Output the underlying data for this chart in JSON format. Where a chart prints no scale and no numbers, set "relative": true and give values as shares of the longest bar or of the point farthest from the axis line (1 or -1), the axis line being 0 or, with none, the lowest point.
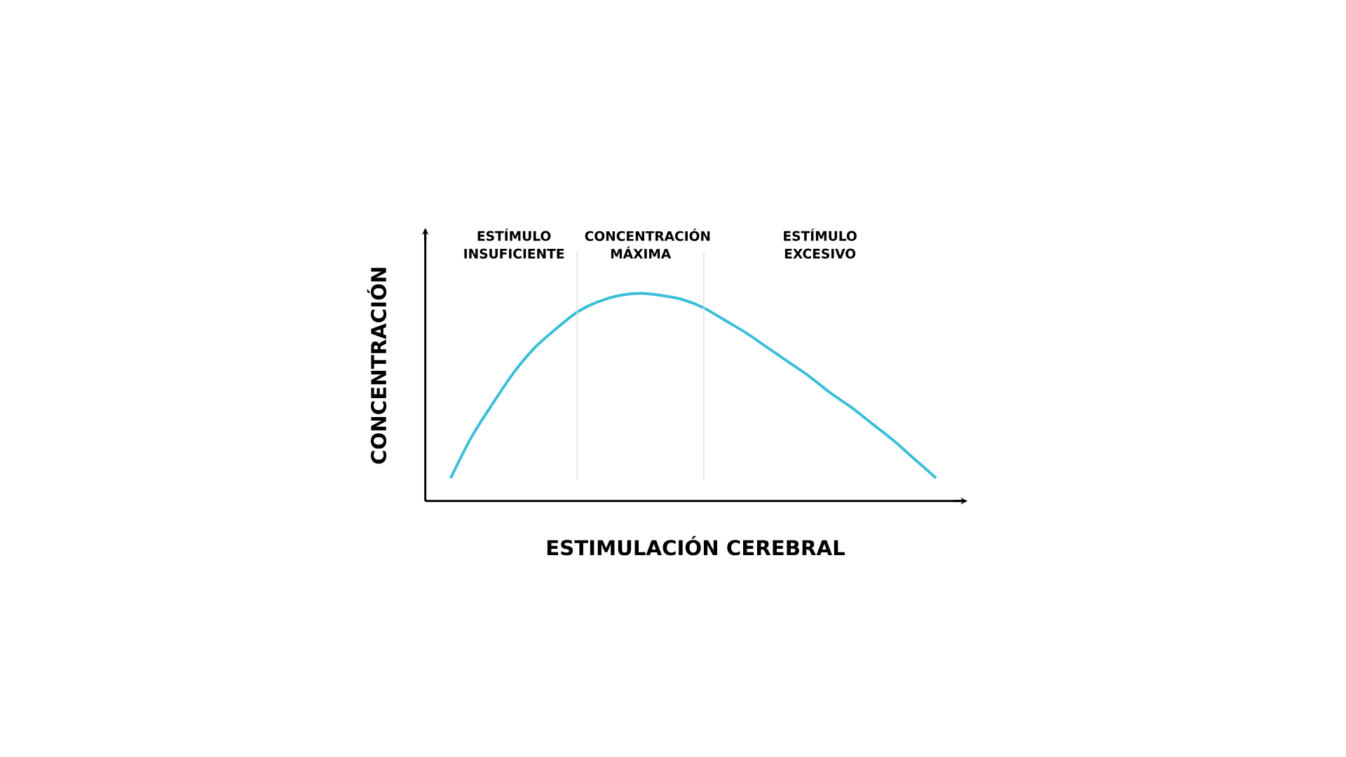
{
  "chart_data": {
    "type": "line",
    "relative": true,
    "xlabel": "ESTIMULACIÓN CEREBRAL",
    "ylabel": "CONCENTRACIÓN",
    "categories": [
      null,
      null,
      null,
      null,
      null,
      null,
      null,
      null,
      null,
      null,
      null,
      null,
      null,
      null,
      null,
      null,
      null,
      null,
      null,
      null,
      null,
      null,
      null,
      null
    ],
    "series": [
      {
        "color": "#3bbfd8",
        "values": [
          0.11,
          0.31,
          0.47,
          0.62,
          0.74,
          0.83,
          0.91,
          0.96,
          0.99,
          1,
          0.99,
          0.97,
          0.93,
          0.87,
          0.81,
          0.74,
          0.67,
          0.6,
          0.52,
          0.45,
          0.37,
          0.29,
          0.2,
          0.11
        ]
      }
    ],
    "annotations": [
      "ESTÍMULO INSUFICIENTE",
      "CONCENTRACIÓN MÁXIMA",
      "ESTÍMULO EXCESIVO"
    ]
  }
}
